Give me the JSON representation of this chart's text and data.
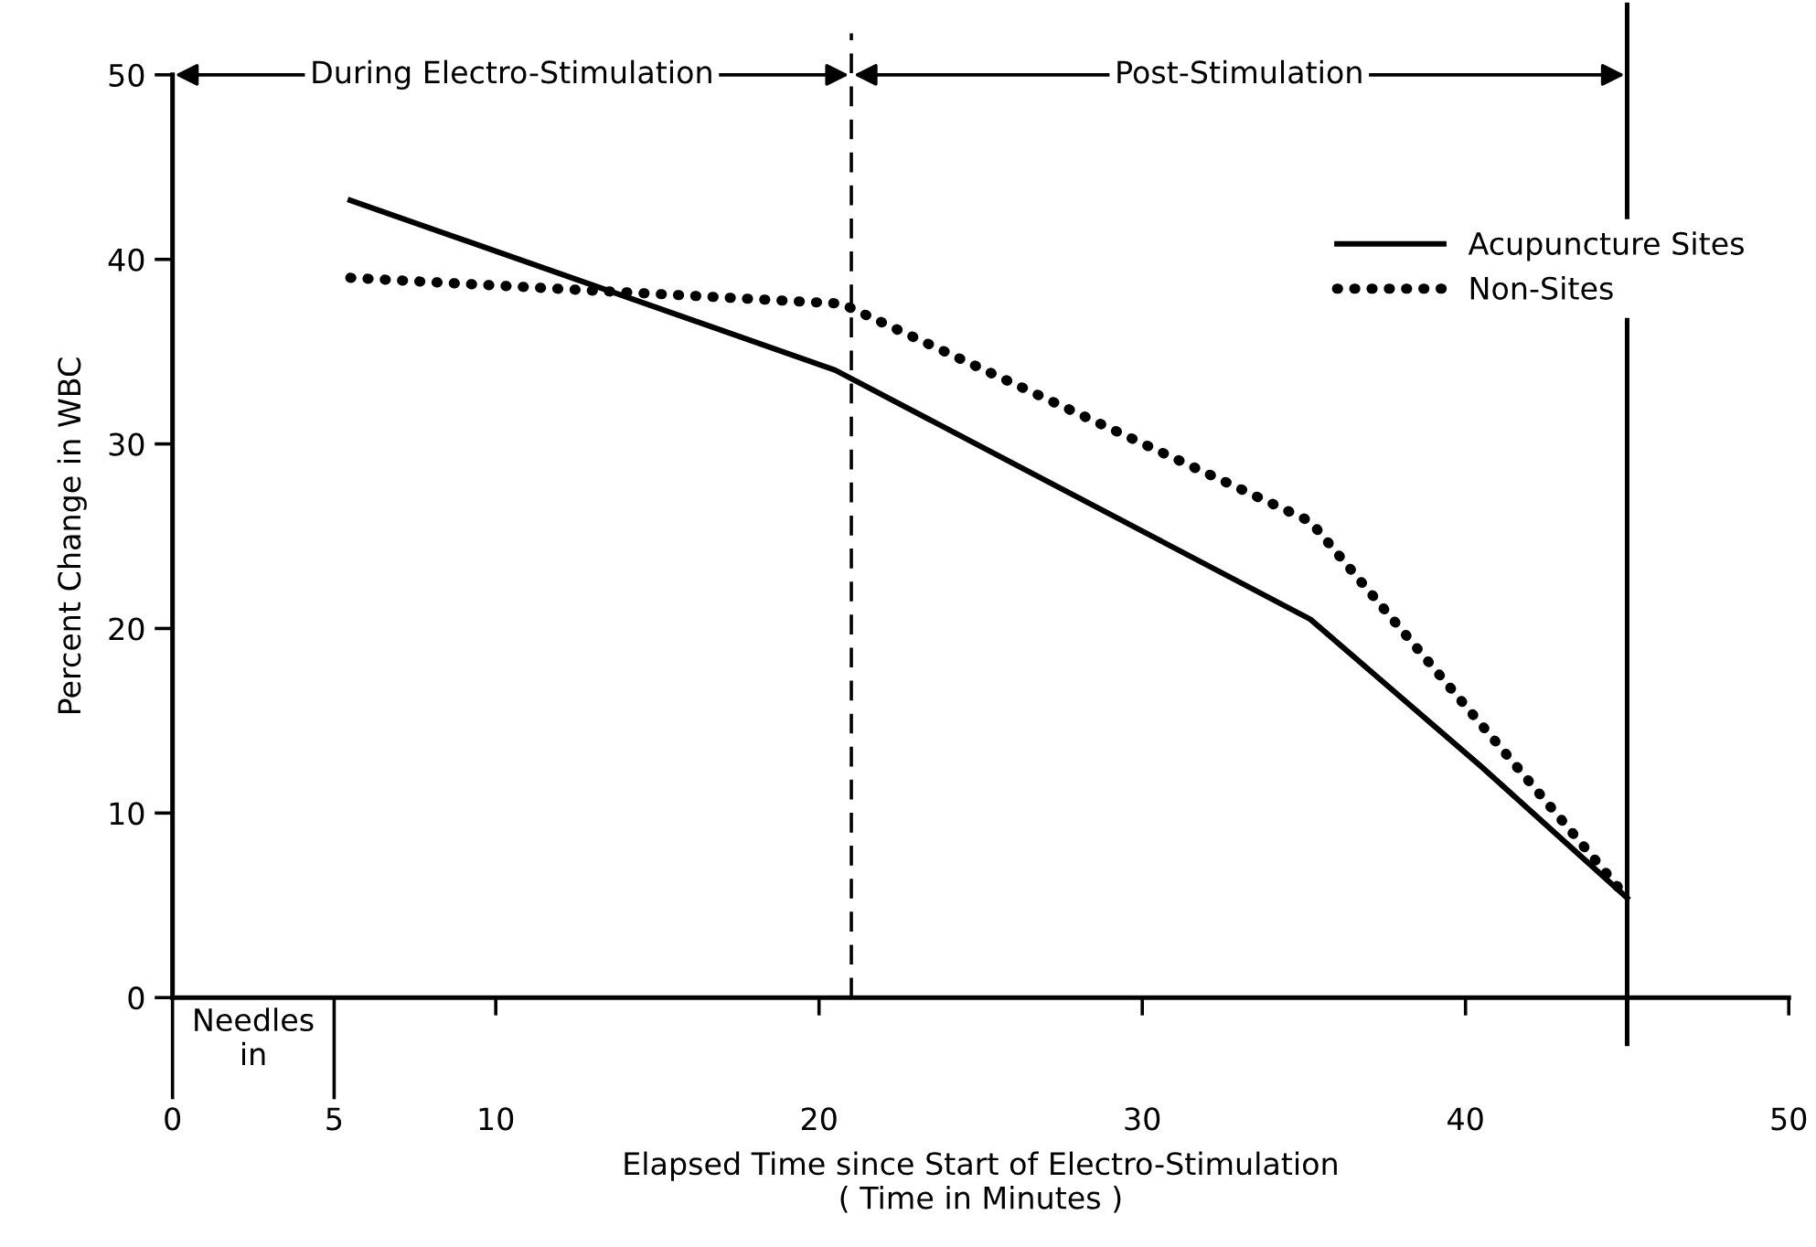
{
  "chart_data": {
    "type": "line",
    "xlabel": "Elapsed Time since Start of Electro-Stimulation\n( Time in Minutes )",
    "ylabel": "Percent Change in WBC",
    "xlim": [
      0,
      50
    ],
    "ylim": [
      0,
      50
    ],
    "xticks": [
      0,
      5,
      10,
      20,
      30,
      40,
      50
    ],
    "yticks": [
      0,
      10,
      20,
      30,
      40,
      50
    ],
    "grid": false,
    "legend": "top right",
    "series": [
      {
        "name": "Acupuncture Sites",
        "color": "#000000",
        "line_style": "solid",
        "x": [
          5.5,
          20.5,
          35.2,
          40.5,
          45
        ],
        "values": [
          43.2,
          34,
          20.5,
          12.5,
          5.4
        ]
      },
      {
        "name": "Non-Sites",
        "color": "#000000",
        "line_style": "dotted",
        "x": [
          5.5,
          20.7,
          35.2,
          45
        ],
        "values": [
          39,
          37.6,
          25.8,
          5.4
        ]
      }
    ],
    "ref_lines": [
      {
        "axis": "x",
        "value": 21,
        "line_style": "dashed",
        "color": "#000000"
      },
      {
        "axis": "x",
        "value": 45,
        "line_style": "solid",
        "color": "#000000"
      }
    ],
    "annotations": [
      "During Electro-Stimulation",
      "Post-Stimulation",
      "Needles\nin"
    ]
  }
}
